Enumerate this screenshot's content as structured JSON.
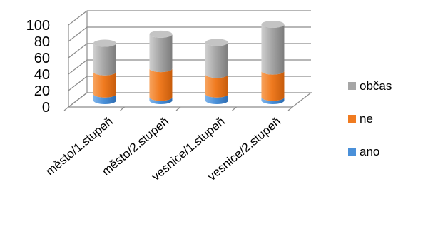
{
  "chart_data": {
    "type": "bar",
    "stacked": true,
    "three_d": true,
    "shape": "cylinder",
    "categories": [
      "město/1.stupeň",
      "město/2.stupeň",
      "vesnice/1.stupeň",
      "vesnice/2.stupeň"
    ],
    "series": [
      {
        "name": "ano",
        "values": [
          8,
          4,
          8,
          4
        ],
        "color": "#4a90d9"
      },
      {
        "name": "ne",
        "values": [
          27,
          35,
          24,
          32
        ],
        "color": "#f07b20"
      },
      {
        "name": "občas",
        "values": [
          35,
          42,
          39,
          57
        ],
        "color": "#a6a6a6"
      }
    ],
    "ylim": [
      0,
      100
    ],
    "yticks": [
      0,
      20,
      40,
      60,
      80,
      100
    ],
    "grid": true,
    "legend": "right",
    "legend_order": [
      "občas",
      "ne",
      "ano"
    ]
  }
}
